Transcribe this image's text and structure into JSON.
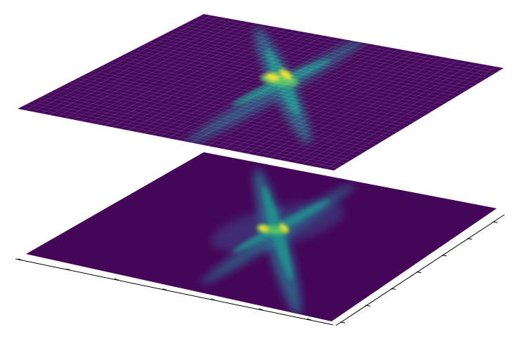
{
  "chart_data": {
    "type": "surface"
  }
}
